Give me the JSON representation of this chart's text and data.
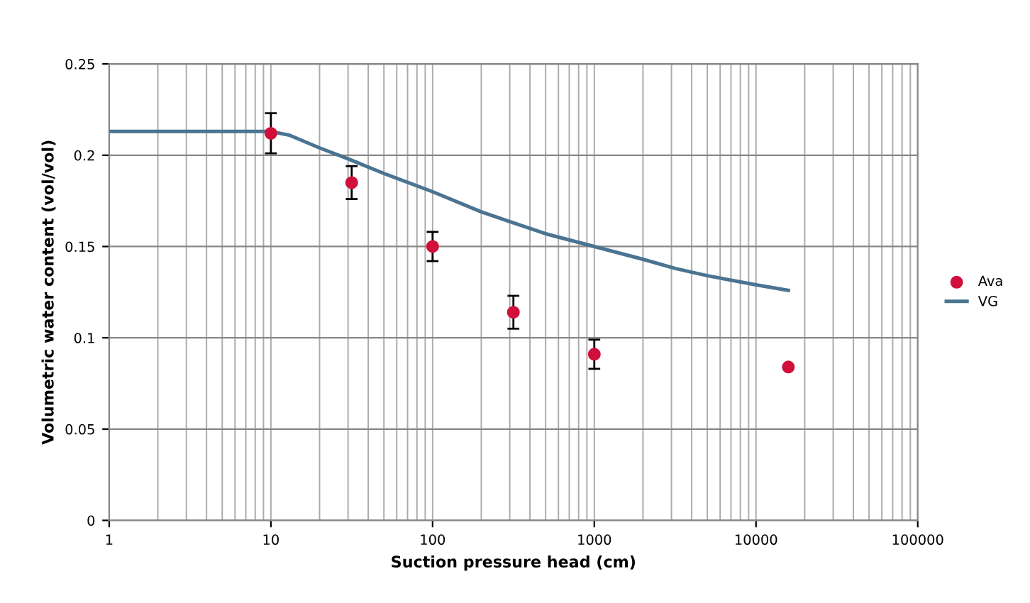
{
  "chart_data": {
    "type": "scatter",
    "xlabel": "Suction pressure head (cm)",
    "ylabel": "Volumetric water content (vol/vol)",
    "log": "x",
    "xlim": [
      1,
      100000
    ],
    "xticks": [
      1,
      10,
      100,
      1000,
      10000,
      100000
    ],
    "ylim": [
      0,
      0.25
    ],
    "yticks": [
      {
        "value": 0,
        "label": "0"
      },
      0.05,
      {
        "value": 0.1,
        "label": "0.1"
      },
      0.15,
      {
        "value": 0.2,
        "label": "0.2"
      },
      0.25
    ],
    "grid": true,
    "legend": "right",
    "series": [
      {
        "name": "Ava",
        "marker": "circle",
        "color": "#d0103a",
        "x": [
          10,
          31.6,
          100,
          316,
          1000,
          15849
        ],
        "values": [
          0.212,
          0.185,
          0.15,
          0.114,
          0.091,
          0.084
        ],
        "errors": [
          0.011,
          0.009,
          0.008,
          0.009,
          0.008,
          null
        ]
      },
      {
        "name": "VG",
        "type": "line",
        "marker": "none",
        "color": "#4a7491",
        "x": [
          1,
          5,
          10,
          13,
          20,
          30,
          50,
          100,
          200,
          316,
          500,
          1000,
          2000,
          3162,
          5000,
          10000,
          15849
        ],
        "values": [
          0.213,
          0.213,
          0.213,
          0.211,
          0.204,
          0.198,
          0.19,
          0.18,
          0.169,
          0.163,
          0.157,
          0.15,
          0.143,
          0.138,
          0.134,
          0.129,
          0.126
        ]
      }
    ]
  }
}
